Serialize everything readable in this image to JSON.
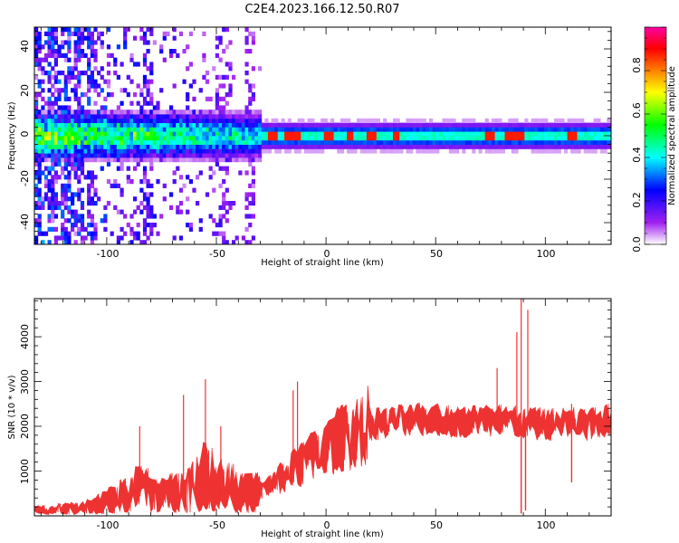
{
  "figure": {
    "title": "C2E4.2023.166.12.50.R07"
  },
  "chart_data": [
    {
      "type": "heatmap",
      "xlabel": "Height of straight line (km)",
      "ylabel": "Frequency (Hz)",
      "xlim": [
        -133,
        130
      ],
      "ylim": [
        -50,
        50
      ],
      "x_ticks": [
        -100,
        -50,
        0,
        50,
        100
      ],
      "y_ticks": [
        -40,
        -20,
        0,
        20,
        40
      ],
      "x_tick_labels": [
        "-100",
        "-50",
        "0",
        "50",
        "100"
      ],
      "y_tick_labels": [
        "-40",
        "-20",
        "0",
        "20",
        "40"
      ],
      "colorbar": {
        "label": "Normalized spectral amplitude",
        "range": [
          0,
          1
        ],
        "ticks": [
          0.0,
          0.2,
          0.4,
          0.6,
          0.8
        ],
        "tick_labels": [
          "0.0",
          "0.2",
          "0.4",
          "0.6",
          "0.8"
        ],
        "colors": [
          "#ffffff",
          "#a020f0",
          "#0000ff",
          "#00ffff",
          "#00ff00",
          "#ffff00",
          "#ff8000",
          "#ff0000",
          "#ff00a0"
        ]
      },
      "features": {
        "main_band": {
          "freq_center": 0,
          "half_width_hz": 3,
          "x_start": -133,
          "x_end": 130
        },
        "strong_spots": [
          -25,
          -18,
          -15,
          -14,
          0,
          1,
          10,
          20,
          31,
          74,
          82,
          85,
          88,
          111,
          112
        ],
        "noise_columns": [
          -133,
          -126,
          -120,
          -113,
          -108,
          -82,
          -49,
          -46,
          -35
        ]
      },
      "grid": false
    },
    {
      "type": "line",
      "series": [
        {
          "color": "#ee3333"
        }
      ],
      "xlabel": "Height of straight line (km)",
      "ylabel": "SNR (10 * v/v)",
      "xlim": [
        -133,
        130
      ],
      "ylim": [
        0,
        4850
      ],
      "x_ticks": [
        -100,
        -50,
        0,
        50,
        100
      ],
      "y_ticks": [
        1000,
        2000,
        3000,
        4000
      ],
      "x_tick_labels": [
        "-100",
        "-50",
        "0",
        "50",
        "100"
      ],
      "y_tick_labels": [
        "1000",
        "2000",
        "3000",
        "4000"
      ],
      "trend": [
        [
          -133,
          120
        ],
        [
          -110,
          180
        ],
        [
          -95,
          400
        ],
        [
          -85,
          650
        ],
        [
          -75,
          450
        ],
        [
          -65,
          600
        ],
        [
          -55,
          900
        ],
        [
          -45,
          700
        ],
        [
          -38,
          500
        ],
        [
          -30,
          550
        ],
        [
          -20,
          850
        ],
        [
          -10,
          1200
        ],
        [
          0,
          1550
        ],
        [
          10,
          1800
        ],
        [
          20,
          2050
        ],
        [
          30,
          2100
        ],
        [
          40,
          2150
        ],
        [
          50,
          2150
        ],
        [
          60,
          2100
        ],
        [
          70,
          2150
        ],
        [
          80,
          2150
        ],
        [
          90,
          2050
        ],
        [
          100,
          2050
        ],
        [
          110,
          2050
        ],
        [
          120,
          2050
        ],
        [
          130,
          2150
        ]
      ],
      "peaks": [
        [
          -85,
          2000
        ],
        [
          -65,
          2700
        ],
        [
          -55,
          3050
        ],
        [
          -48,
          2000
        ],
        [
          -15,
          2800
        ],
        [
          -13,
          3000
        ],
        [
          35,
          2450
        ],
        [
          67,
          2450
        ],
        [
          78,
          3300
        ],
        [
          87,
          4100
        ],
        [
          89,
          4850
        ],
        [
          92,
          4600
        ],
        [
          112,
          2500
        ]
      ],
      "dips": [
        [
          89,
          50
        ],
        [
          91,
          120
        ],
        [
          112,
          750
        ]
      ],
      "grid": false
    }
  ]
}
